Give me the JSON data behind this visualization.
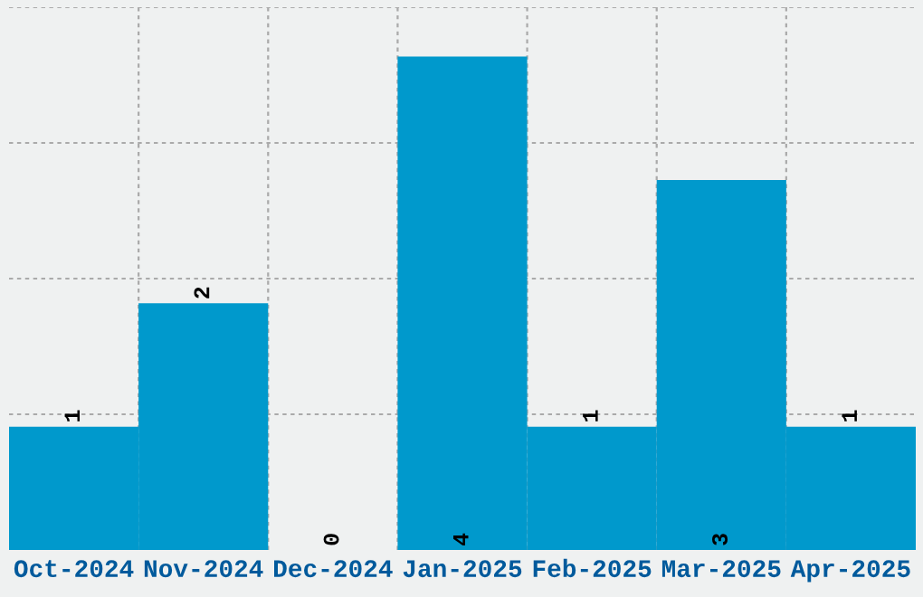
{
  "chart_data": {
    "type": "bar",
    "categories": [
      "Oct-2024",
      "Nov-2024",
      "Dec-2024",
      "Jan-2025",
      "Feb-2025",
      "Mar-2025",
      "Apr-2025"
    ],
    "values": [
      1,
      2,
      0,
      4,
      1,
      3,
      1
    ],
    "color": "#0099cc",
    "ylim": [
      0,
      4.4
    ],
    "yticks": [
      {
        "value": 1.1,
        "label": null
      },
      {
        "value": 2.2,
        "label": null
      },
      {
        "value": 3.3,
        "label": null
      },
      {
        "value": 4.4,
        "label": null
      }
    ],
    "tick_labels": "x",
    "grid": true,
    "data_labels": true
  }
}
